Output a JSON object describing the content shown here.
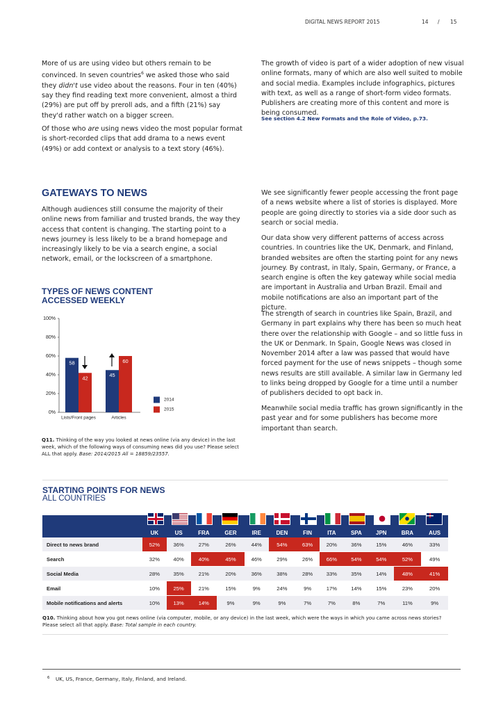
{
  "header": {
    "title": "DIGITAL NEWS REPORT 2015",
    "page": "14",
    "separator": "/",
    "total": "15"
  },
  "video_left_1": [
    "More of us are using video but others remain to be convinced. In seven countries",
    "6",
    " we asked those who said they ",
    "didn't",
    " use video about the reasons. Four in ten (40%) say they find reading text more convenient, almost a third (29%) are put off by preroll ads, and a fifth (21%) say they'd rather watch on a bigger screen."
  ],
  "video_left_2": [
    "Of those who ",
    "are",
    " using news video the most popular format is short-recorded clips that add drama to a news event (49%) or add context or analysis to a text story (46%)."
  ],
  "video_right": "The growth of video is part of a wider adoption of new visual online formats, many of which are also well suited to mobile and social media. Examples include infographics, pictures with text, as well as a range of short-form video formats. Publishers are creating more of this content and more is being consumed.",
  "video_link": "See section 4.2 New Formats and the Role of Video, p.73.",
  "gateways": {
    "title": "GATEWAYS TO NEWS",
    "intro": "Although audiences still consume the majority of their online news from familiar and trusted brands, the way they access that content is changing. The starting point to a news journey is less likely to be a brand homepage and increasingly likely to be via a search engine, a social network, email, or the lockscreen of a smartphone.",
    "right": [
      "We see significantly fewer people accessing the front page of a news website where a list of stories is displayed. More people are going directly to stories via a side door such as search or social media.",
      "Our data show very different patterns of access across countries. In countries like the UK, Denmark, and Finland, branded websites are often the starting point for any news journey. By contrast, in Italy, Spain, Germany, or France, a search engine is often the key gateway while social media are important in Australia and Urban Brazil. Email and mobile notifications are also an important part of the picture.",
      "The strength of search in countries like Spain, Brazil, and Germany in part explains why there has been so much heat there over the relationship with Google – and so little fuss in the UK or Denmark. In Spain, Google News was closed in November 2014 after a law was passed that would have forced payment for the use of news snippets – though some news results are still available. A similar law in Germany led to links being dropped by Google for a time until a number of publishers decided to opt back in.",
      "Meanwhile social media traffic has grown significantly in the past year and for some publishers has become more important than search."
    ]
  },
  "chart_data": {
    "type": "bar",
    "title": [
      "TYPES OF NEWS CONTENT",
      "ACCESSED WEEKLY"
    ],
    "categories": [
      "Lists/Front pages",
      "Articles"
    ],
    "series": [
      {
        "name": "2014",
        "color": "#1f3a7a",
        "values": [
          58,
          45
        ]
      },
      {
        "name": "2015",
        "color": "#c8281e",
        "values": [
          42,
          60
        ]
      }
    ],
    "ylim": [
      0,
      100
    ],
    "yticks": [
      {
        "value": 0,
        "label": "0%"
      },
      {
        "value": 20,
        "label": "20%"
      },
      {
        "value": 40,
        "label": "40%"
      },
      {
        "value": 60,
        "label": "60%"
      },
      {
        "value": 80,
        "label": "80%"
      },
      {
        "value": 100,
        "label": "100%"
      }
    ],
    "grid": false
  },
  "chart_note": [
    "Q11.",
    " Thinking of the way you looked at news online (via any device) in the last week, which of the following ways of consuming news did you use? Please select ALL that apply. ",
    "Base: 2014/2015 All = 18859/23557."
  ],
  "table": {
    "title": "STARTING POINTS FOR NEWS",
    "subtitle": "ALL COUNTRIES",
    "highlight_color": "#c8281e",
    "columns": [
      "UK",
      "US",
      "FRA",
      "GER",
      "IRE",
      "DEN",
      "FIN",
      "ITA",
      "SPA",
      "JPN",
      "BRA",
      "AUS"
    ],
    "rows": [
      {
        "label": "Direct to news brand",
        "cells": [
          "52%",
          "36%",
          "27%",
          "26%",
          "44%",
          "54%",
          "63%",
          "20%",
          "36%",
          "15%",
          "46%",
          "33%"
        ],
        "highlighted": [
          0,
          5,
          6
        ]
      },
      {
        "label": "Search",
        "cells": [
          "32%",
          "40%",
          "40%",
          "45%",
          "46%",
          "29%",
          "26%",
          "66%",
          "54%",
          "54%",
          "52%",
          "49%"
        ],
        "highlighted": [
          2,
          3,
          7,
          8,
          9,
          10
        ]
      },
      {
        "label": "Social Media",
        "cells": [
          "28%",
          "35%",
          "21%",
          "20%",
          "36%",
          "38%",
          "28%",
          "33%",
          "35%",
          "14%",
          "48%",
          "41%"
        ],
        "highlighted": [
          10,
          11
        ]
      },
      {
        "label": "Email",
        "cells": [
          "10%",
          "25%",
          "21%",
          "15%",
          "9%",
          "24%",
          "9%",
          "17%",
          "14%",
          "15%",
          "23%",
          "20%"
        ],
        "highlighted": [
          1
        ]
      },
      {
        "label": "Mobile notifications and alerts",
        "cells": [
          "10%",
          "13%",
          "14%",
          "9%",
          "9%",
          "9%",
          "7%",
          "7%",
          "8%",
          "7%",
          "11%",
          "9%"
        ],
        "highlighted": [
          1,
          2
        ]
      }
    ]
  },
  "table_note": [
    "Q10.",
    " Thinking about how you got news online (via computer, mobile, or any device) in the last week, which were the ways in which you came across news stories? Please select all that apply. ",
    "Base: Total sample in each country."
  ],
  "footnote": {
    "number": "6",
    "text": "UK, US, France, Germany, Italy, Finland, and Ireland."
  }
}
